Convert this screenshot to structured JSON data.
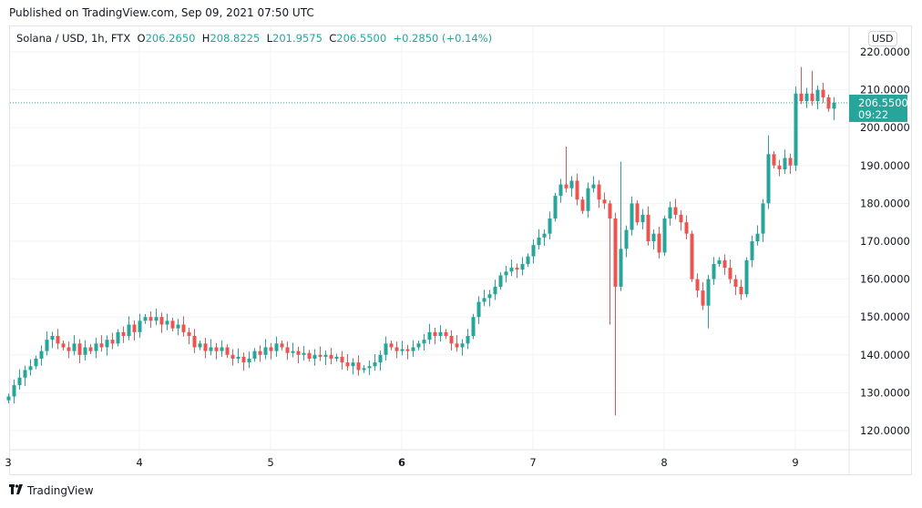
{
  "header": {
    "published": "Published on TradingView.com, Sep 09, 2021 07:50 UTC"
  },
  "legend": {
    "symbol": "Solana / USD, 1h, FTX",
    "o_label": "O",
    "o": "206.2650",
    "h_label": "H",
    "h": "208.8225",
    "l_label": "L",
    "l": "201.9575",
    "c_label": "C",
    "c": "206.5500",
    "change": "+0.2850",
    "change_pct": "(+0.14%)"
  },
  "currency_button": "USD",
  "last_price": {
    "price": "206.5500",
    "countdown": "09:22"
  },
  "footer": {
    "brand": "TradingView",
    "logo": "TV"
  },
  "colors": {
    "up": "#26a69a",
    "down": "#ef5350",
    "grid": "#f0f3fa",
    "axis_text": "#131722"
  },
  "chart_data": {
    "type": "candlestick",
    "title": "Solana / USD, 1h, FTX",
    "interval": "1h",
    "ylim": [
      115,
      225
    ],
    "y_ticks": [
      "120.0000",
      "130.0000",
      "140.0000",
      "150.0000",
      "160.0000",
      "170.0000",
      "180.0000",
      "190.0000",
      "200.0000",
      "210.0000",
      "220.0000"
    ],
    "y_tick_values": [
      120,
      130,
      140,
      150,
      160,
      170,
      180,
      190,
      200,
      210,
      220
    ],
    "x_ticks": [
      "3",
      "4",
      "5",
      "6",
      "7",
      "8",
      "9"
    ],
    "x_tick_hour_index": [
      0,
      24,
      48,
      72,
      96,
      120,
      144
    ],
    "first_open": 128,
    "closes": [
      129,
      132,
      134,
      136,
      137,
      139,
      141,
      144,
      145,
      143,
      142,
      141,
      143,
      140,
      142,
      141,
      143,
      142,
      144,
      143,
      146,
      145,
      148,
      146,
      149,
      150,
      149,
      150,
      148,
      149,
      147,
      148,
      146,
      145,
      142,
      143,
      141,
      142,
      141,
      142,
      140,
      139,
      139.5,
      138,
      139,
      141,
      140,
      142,
      141,
      143,
      142,
      140.5,
      141,
      140,
      140.5,
      139,
      140,
      139.5,
      140,
      139,
      139.5,
      138,
      137,
      138,
      136,
      136.5,
      137,
      138,
      140,
      143,
      142,
      141,
      141.5,
      141,
      142,
      143,
      144,
      146,
      145,
      146,
      145,
      143,
      142,
      143,
      145,
      150,
      154,
      155,
      156,
      158,
      161,
      162,
      163,
      162.5,
      164,
      166,
      169,
      171,
      172,
      176,
      182,
      185,
      184,
      186,
      181,
      178,
      184,
      185,
      181,
      180,
      176,
      158,
      168,
      173,
      180,
      175,
      177,
      170,
      172,
      167,
      176,
      179,
      177,
      175,
      172,
      160,
      157,
      153,
      160,
      164,
      165,
      163,
      160,
      158,
      156,
      165,
      170,
      172,
      180,
      193,
      190,
      189,
      192,
      190,
      209,
      207,
      209,
      207,
      210,
      208,
      205,
      206.55
    ],
    "wick_overrides": [
      {
        "i": 102,
        "high": 195
      },
      {
        "i": 111,
        "low": 124
      },
      {
        "i": 112,
        "high": 191
      },
      {
        "i": 110,
        "low": 148
      },
      {
        "i": 128,
        "low": 147
      },
      {
        "i": 139,
        "high": 198
      },
      {
        "i": 145,
        "high": 216
      },
      {
        "i": 147,
        "high": 215
      },
      {
        "i": 151,
        "low": 202
      }
    ],
    "last_price": 206.55
  }
}
